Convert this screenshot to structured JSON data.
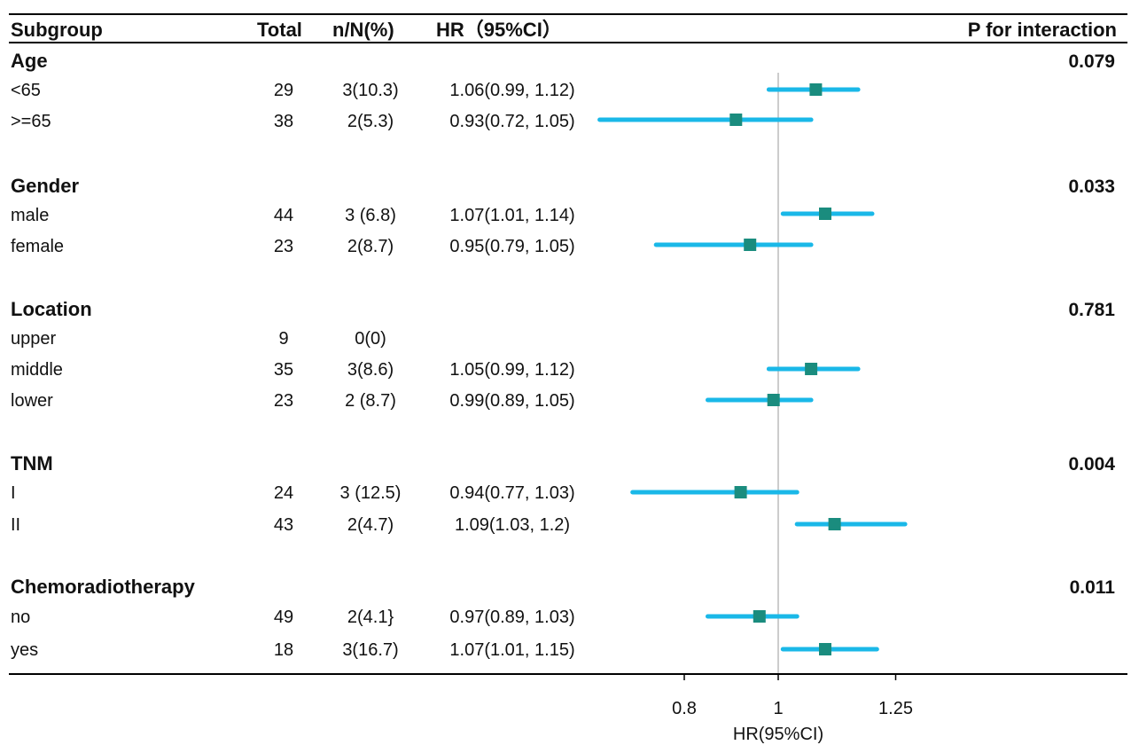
{
  "headers": {
    "subgroup": "Subgroup",
    "total": "Total",
    "nN": "n/N(%)",
    "hr": "HR（95%CI）",
    "pint": "P for interaction"
  },
  "rows": [
    {
      "kind": "group",
      "label": "Age",
      "p": "0.079"
    },
    {
      "kind": "sub",
      "label": "<65",
      "total": "29",
      "nN": "3(10.3)",
      "hr": "1.06(0.99, 1.12)"
    },
    {
      "kind": "sub",
      "label": ">=65",
      "total": "38",
      "nN": "2(5.3)",
      "hr": "0.93(0.72, 1.05)"
    },
    {
      "kind": "group",
      "label": "Gender",
      "p": "0.033"
    },
    {
      "kind": "sub",
      "label": "male",
      "total": "44",
      "nN": "3 (6.8)",
      "hr": "1.07(1.01, 1.14)"
    },
    {
      "kind": "sub",
      "label": "female",
      "total": "23",
      "nN": "2(8.7)",
      "hr": "0.95(0.79, 1.05)"
    },
    {
      "kind": "group",
      "label": "Location",
      "p": "0.781"
    },
    {
      "kind": "sub",
      "label": "upper",
      "total": "9",
      "nN": "0(0)",
      "hr": ""
    },
    {
      "kind": "sub",
      "label": "middle",
      "total": "35",
      "nN": "3(8.6)",
      "hr": "1.05(0.99, 1.12)"
    },
    {
      "kind": "sub",
      "label": "lower",
      "total": "23",
      "nN": "2 (8.7)",
      "hr": "0.99(0.89, 1.05)"
    },
    {
      "kind": "group",
      "label": "TNM",
      "p": "0.004"
    },
    {
      "kind": "sub",
      "label": "I",
      "total": "24",
      "nN": "3 (12.5)",
      "hr": "0.94(0.77, 1.03)"
    },
    {
      "kind": "sub",
      "label": "II",
      "total": "43",
      "nN": "2(4.7)",
      "hr": "1.09(1.03, 1.2)"
    },
    {
      "kind": "group",
      "label": "Chemoradiotherapy",
      "p": "0.011"
    },
    {
      "kind": "sub",
      "label": "no",
      "total": "49",
      "nN": "2(4.1}",
      "hr": "0.97(0.89, 1.03)"
    },
    {
      "kind": "sub",
      "label": "yes",
      "total": "18",
      "nN": "3(16.7)",
      "hr": "1.07(1.01, 1.15)"
    }
  ],
  "chart_data": {
    "type": "scatter",
    "subtype": "forest",
    "xlabel": "HR(95%CI)",
    "xlim": [
      0.55,
      1.35
    ],
    "xticks": [
      0.8,
      1,
      1.25
    ],
    "xtick_labels": [
      "0.8",
      "1",
      "1.25"
    ],
    "reference_line": 1,
    "grid": false,
    "colors": {
      "marker": "#1a8c7e",
      "ci_line": "#1ab8e8",
      "reference": "#aaaaaa"
    },
    "points": [
      {
        "row": "<65",
        "hr": 1.08,
        "lo": 0.98,
        "hi": 1.17
      },
      {
        "row": ">=65",
        "hr": 0.91,
        "lo": 0.62,
        "hi": 1.07
      },
      {
        "row": "male",
        "hr": 1.1,
        "lo": 1.01,
        "hi": 1.2
      },
      {
        "row": "female",
        "hr": 0.94,
        "lo": 0.74,
        "hi": 1.07
      },
      {
        "row": "middle",
        "hr": 1.07,
        "lo": 0.98,
        "hi": 1.17
      },
      {
        "row": "lower",
        "hr": 0.99,
        "lo": 0.85,
        "hi": 1.07
      },
      {
        "row": "I",
        "hr": 0.92,
        "lo": 0.69,
        "hi": 1.04
      },
      {
        "row": "II",
        "hr": 1.12,
        "lo": 1.04,
        "hi": 1.27
      },
      {
        "row": "no",
        "hr": 0.96,
        "lo": 0.85,
        "hi": 1.04
      },
      {
        "row": "yes",
        "hr": 1.1,
        "lo": 1.01,
        "hi": 1.21
      }
    ]
  }
}
